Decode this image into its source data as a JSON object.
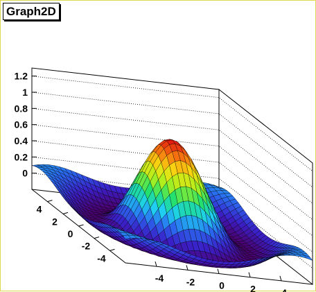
{
  "title": "Graph2D",
  "chart_data": {
    "type": "surface",
    "function": "sin(sqrt(x^2+y^2))/sqrt(x^2+y^2)",
    "title": "Graph2D",
    "xlim": [
      -6,
      6
    ],
    "ylim": [
      -6,
      6
    ],
    "zlim": [
      -0.2,
      1.3
    ],
    "x_ticks": [
      "-4",
      "-2",
      "0",
      "2",
      "4"
    ],
    "y_ticks": [
      "4",
      "2",
      "0",
      "-2",
      "-4"
    ],
    "z_ticks": [
      "0",
      "0.2",
      "0.4",
      "0.6",
      "0.8",
      "1",
      "1.2"
    ],
    "z_max": 1.0,
    "grid": true,
    "colormap": [
      "#4b006e",
      "#3a20c8",
      "#2a6af0",
      "#1fd0f0",
      "#20e070",
      "#a8f020",
      "#f8e010",
      "#f87a10",
      "#e01010"
    ]
  },
  "colors": {
    "frame_border": "#e2d64a",
    "box_edge": "#000000",
    "grid": "#000000"
  }
}
